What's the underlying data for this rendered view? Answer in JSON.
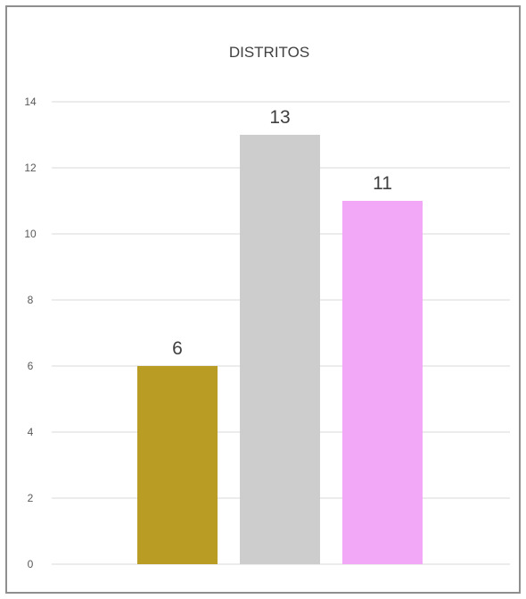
{
  "chart_data": {
    "type": "bar",
    "title": "DISTRITOS",
    "categories": [
      "",
      "",
      ""
    ],
    "values": [
      6,
      13,
      11
    ],
    "colors": [
      "#B89C24",
      "#CDCDCD",
      "#F2A8F6"
    ],
    "ylim": [
      0,
      14
    ],
    "yticks": [
      0,
      2,
      4,
      6,
      8,
      10,
      12,
      14
    ],
    "xlabel": "",
    "ylabel": "",
    "grid": true,
    "legend": false
  }
}
